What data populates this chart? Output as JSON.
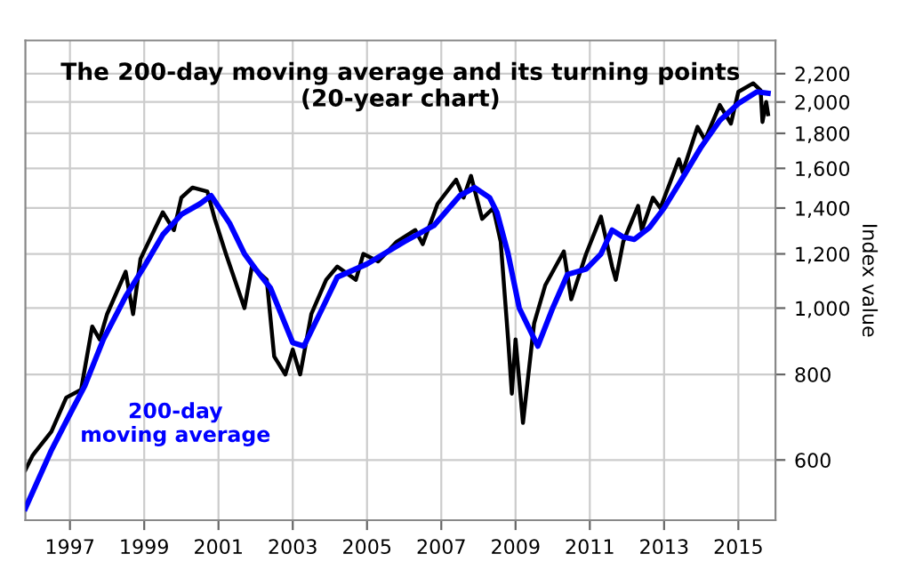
{
  "chart_data": {
    "type": "line",
    "title": "The 200-day moving average and its turning points\n(20-year chart)",
    "ylabel": "Index value",
    "log": "y",
    "grid": true,
    "legend": false,
    "xlim": [
      1995.8,
      2016.0
    ],
    "xticks": [
      1997,
      1999,
      2001,
      2003,
      2005,
      2007,
      2009,
      2011,
      2013,
      2015
    ],
    "ylim": [
      490,
      2460
    ],
    "yticks": [
      {
        "value": 600,
        "label": "600"
      },
      {
        "value": 800,
        "label": "800"
      },
      {
        "value": 1000,
        "label": "1,000"
      },
      {
        "value": 1200,
        "label": "1,200"
      },
      {
        "value": 1400,
        "label": "1,400"
      },
      {
        "value": 1600,
        "label": "1,600"
      },
      {
        "value": 1800,
        "label": "1,800"
      },
      {
        "value": 2000,
        "label": "2,000"
      },
      {
        "value": 2200,
        "label": "2,200"
      }
    ],
    "series": [
      {
        "color": "#000000",
        "x": [
          1995.8,
          1996.0,
          1996.5,
          1996.9,
          1997.3,
          1997.6,
          1997.8,
          1998.0,
          1998.5,
          1998.7,
          1998.9,
          1999.5,
          1999.8,
          2000.0,
          2000.3,
          2000.7,
          2000.9,
          2001.2,
          2001.7,
          2001.9,
          2002.3,
          2002.5,
          2002.8,
          2003.0,
          2003.2,
          2003.5,
          2003.9,
          2004.2,
          2004.7,
          2004.9,
          2005.3,
          2005.8,
          2006.3,
          2006.5,
          2006.9,
          2007.4,
          2007.6,
          2007.8,
          2008.1,
          2008.4,
          2008.6,
          2008.8,
          2008.9,
          2009.0,
          2009.2,
          2009.5,
          2009.8,
          2010.3,
          2010.5,
          2010.9,
          2011.3,
          2011.6,
          2011.7,
          2011.9,
          2012.3,
          2012.4,
          2012.7,
          2012.9,
          2013.4,
          2013.5,
          2013.9,
          2014.1,
          2014.5,
          2014.8,
          2015.0,
          2015.4,
          2015.6,
          2015.65,
          2015.75,
          2015.8
        ],
        "values": [
          580,
          610,
          660,
          740,
          760,
          940,
          900,
          980,
          1130,
          980,
          1180,
          1380,
          1300,
          1450,
          1500,
          1480,
          1350,
          1200,
          1000,
          1150,
          1100,
          850,
          800,
          870,
          800,
          980,
          1100,
          1150,
          1100,
          1200,
          1170,
          1250,
          1300,
          1240,
          1420,
          1540,
          1450,
          1560,
          1350,
          1400,
          1250,
          900,
          750,
          900,
          680,
          950,
          1080,
          1210,
          1030,
          1200,
          1360,
          1150,
          1100,
          1250,
          1410,
          1300,
          1450,
          1400,
          1650,
          1580,
          1840,
          1760,
          1980,
          1860,
          2070,
          2130,
          2080,
          1870,
          2000,
          1920
        ]
      },
      {
        "name": "200-day\nmoving average",
        "color": "#0000ff",
        "x": [
          1995.8,
          1996.5,
          1997.0,
          1997.4,
          1997.9,
          1998.5,
          1999.0,
          1999.5,
          2000.0,
          2000.5,
          2000.8,
          2001.3,
          2001.7,
          2002.0,
          2002.4,
          2003.0,
          2003.3,
          2003.8,
          2004.2,
          2005.0,
          2006.0,
          2006.8,
          2007.5,
          2007.9,
          2008.3,
          2008.5,
          2008.8,
          2009.1,
          2009.6,
          2010.0,
          2010.4,
          2010.9,
          2011.3,
          2011.6,
          2011.9,
          2012.2,
          2012.6,
          2013.0,
          2013.5,
          2014.0,
          2014.5,
          2015.0,
          2015.5,
          2015.8
        ],
        "values": [
          510,
          620,
          700,
          770,
          900,
          1040,
          1150,
          1280,
          1370,
          1420,
          1460,
          1330,
          1200,
          1140,
          1070,
          890,
          880,
          1000,
          1110,
          1160,
          1250,
          1320,
          1460,
          1500,
          1450,
          1380,
          1200,
          1000,
          880,
          1000,
          1120,
          1140,
          1200,
          1300,
          1270,
          1260,
          1310,
          1400,
          1550,
          1720,
          1880,
          1990,
          2070,
          2060
        ]
      }
    ]
  }
}
